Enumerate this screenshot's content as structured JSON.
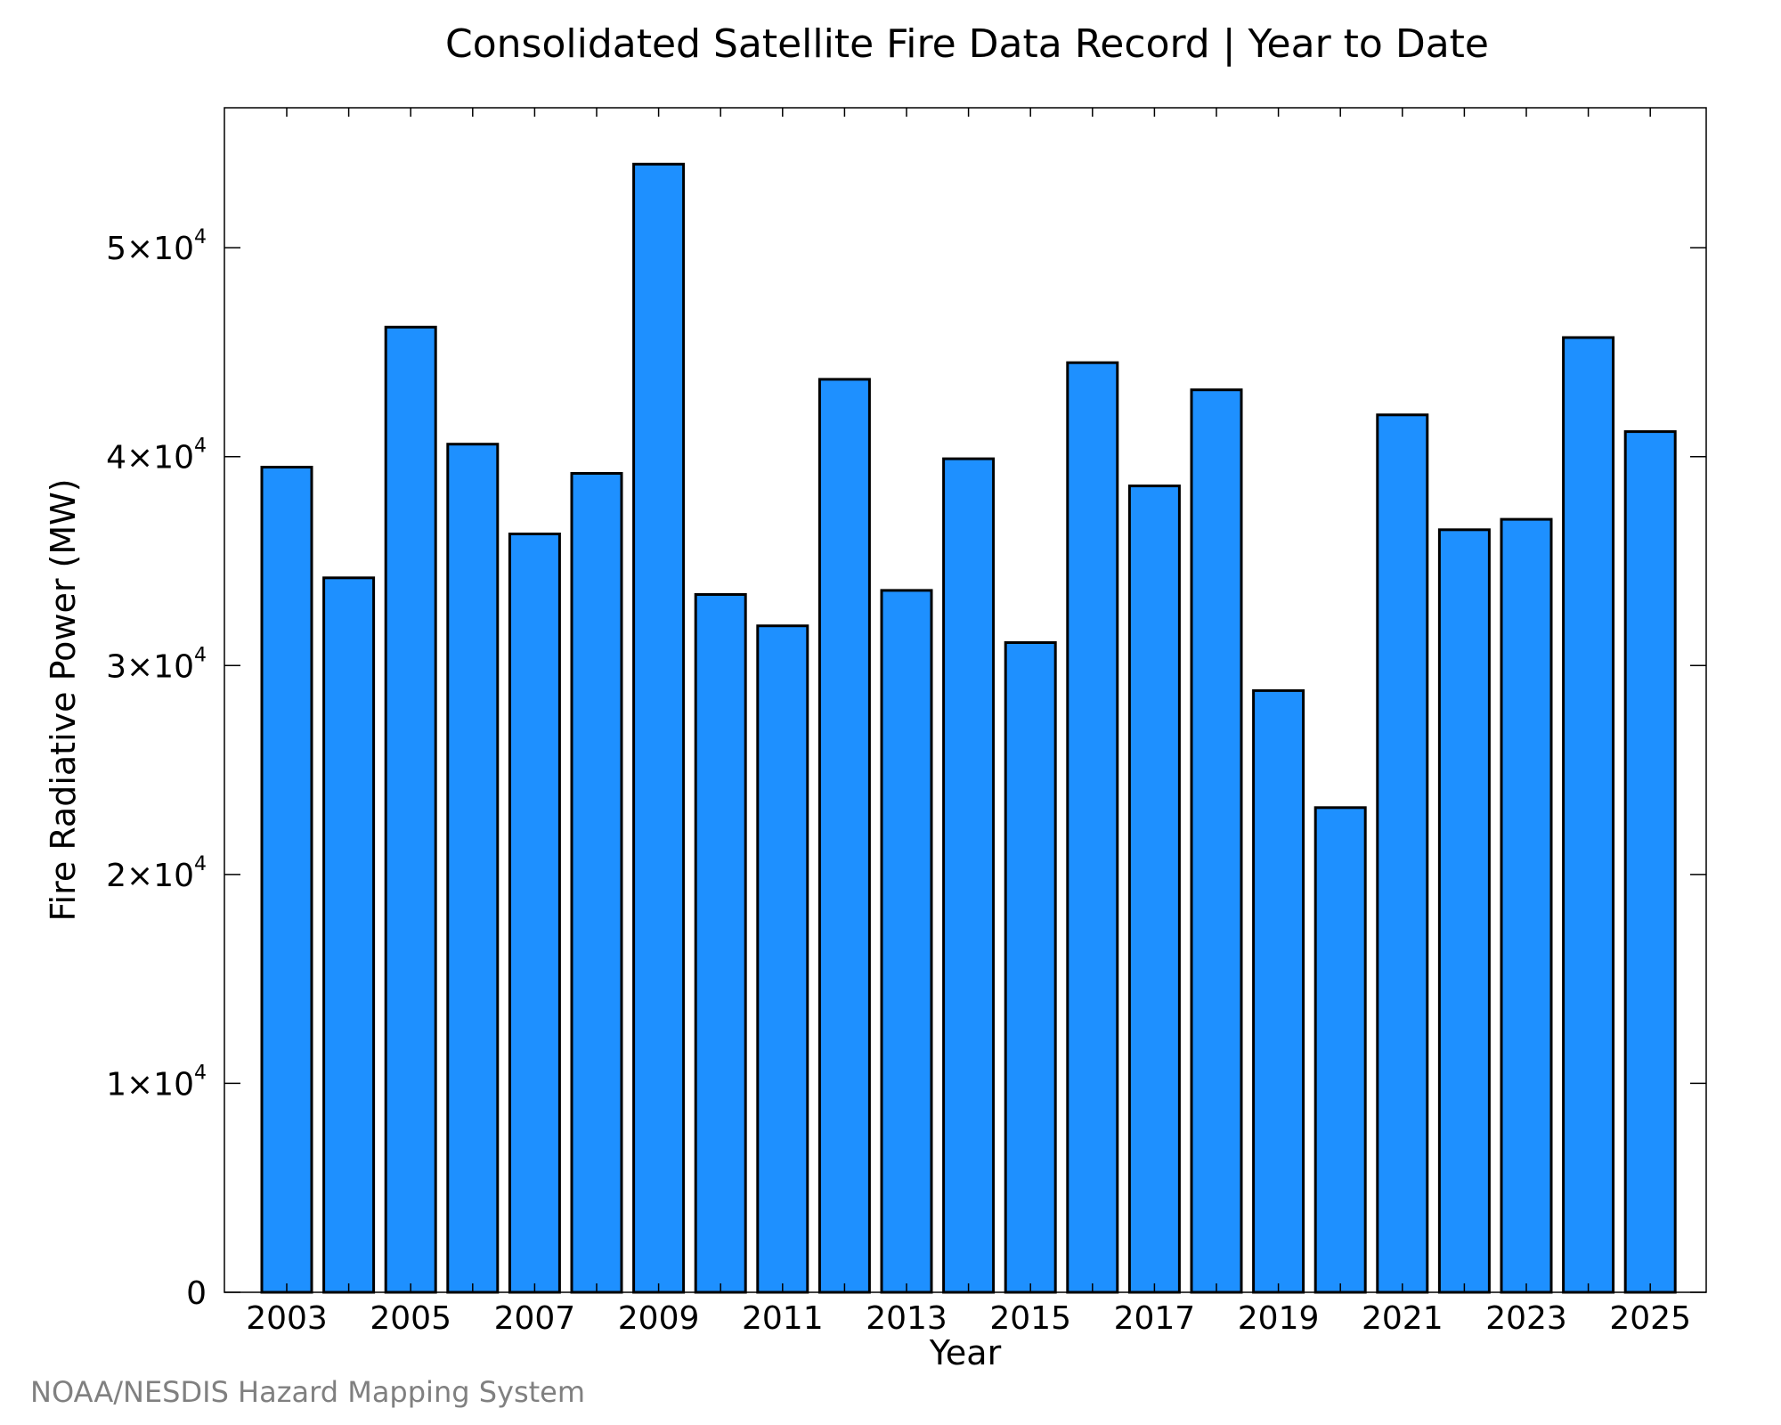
{
  "chart_data": {
    "type": "bar",
    "title": "Consolidated Satellite Fire Data Record | Year to Date",
    "xlabel": "Year",
    "ylabel": "Fire Radiative Power (MW)",
    "categories": [
      "2003",
      "2004",
      "2005",
      "2006",
      "2007",
      "2008",
      "2009",
      "2010",
      "2011",
      "2012",
      "2013",
      "2014",
      "2015",
      "2016",
      "2017",
      "2018",
      "2019",
      "2020",
      "2021",
      "2022",
      "2023",
      "2024",
      "2025"
    ],
    "values": [
      39500,
      34200,
      46200,
      40600,
      36300,
      39200,
      54000,
      33400,
      31900,
      43700,
      33600,
      39900,
      31100,
      44500,
      38600,
      43200,
      28800,
      23200,
      42000,
      36500,
      37000,
      45700,
      41200
    ],
    "ylim": [
      0,
      56700
    ],
    "x_tick_labels": [
      "2003",
      "2005",
      "2007",
      "2009",
      "2011",
      "2013",
      "2015",
      "2017",
      "2019",
      "2021",
      "2023",
      "2025"
    ],
    "y_ticks": [
      {
        "value": 0,
        "mantissa": "0",
        "exponent": ""
      },
      {
        "value": 10000,
        "mantissa": "1×10",
        "exponent": "4"
      },
      {
        "value": 20000,
        "mantissa": "2×10",
        "exponent": "4"
      },
      {
        "value": 30000,
        "mantissa": "3×10",
        "exponent": "4"
      },
      {
        "value": 40000,
        "mantissa": "4×10",
        "exponent": "4"
      },
      {
        "value": 50000,
        "mantissa": "5×10",
        "exponent": "4"
      }
    ],
    "bar_color": "#1e90ff",
    "grid": false,
    "legend": "none"
  },
  "source_note": "NOAA/NESDIS Hazard Mapping System"
}
